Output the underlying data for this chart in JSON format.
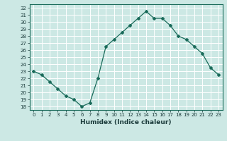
{
  "x": [
    0,
    1,
    2,
    3,
    4,
    5,
    6,
    7,
    8,
    9,
    10,
    11,
    12,
    13,
    14,
    15,
    16,
    17,
    18,
    19,
    20,
    21,
    22,
    23
  ],
  "y": [
    23.0,
    22.5,
    21.5,
    20.5,
    19.5,
    19.0,
    18.0,
    18.5,
    22.0,
    26.5,
    27.5,
    28.5,
    29.5,
    30.5,
    31.5,
    30.5,
    30.5,
    29.5,
    28.0,
    27.5,
    26.5,
    25.5,
    23.5,
    22.5
  ],
  "xlabel": "Humidex (Indice chaleur)",
  "xlim": [
    -0.5,
    23.5
  ],
  "ylim": [
    17.5,
    32.5
  ],
  "yticks": [
    18,
    19,
    20,
    21,
    22,
    23,
    24,
    25,
    26,
    27,
    28,
    29,
    30,
    31,
    32
  ],
  "xticks": [
    0,
    1,
    2,
    3,
    4,
    5,
    6,
    7,
    8,
    9,
    10,
    11,
    12,
    13,
    14,
    15,
    16,
    17,
    18,
    19,
    20,
    21,
    22,
    23
  ],
  "line_color": "#1a6b5a",
  "marker": "D",
  "marker_size": 2.0,
  "bg_color": "#cce8e4",
  "grid_color": "#ffffff",
  "label_color": "#1a3a3a"
}
